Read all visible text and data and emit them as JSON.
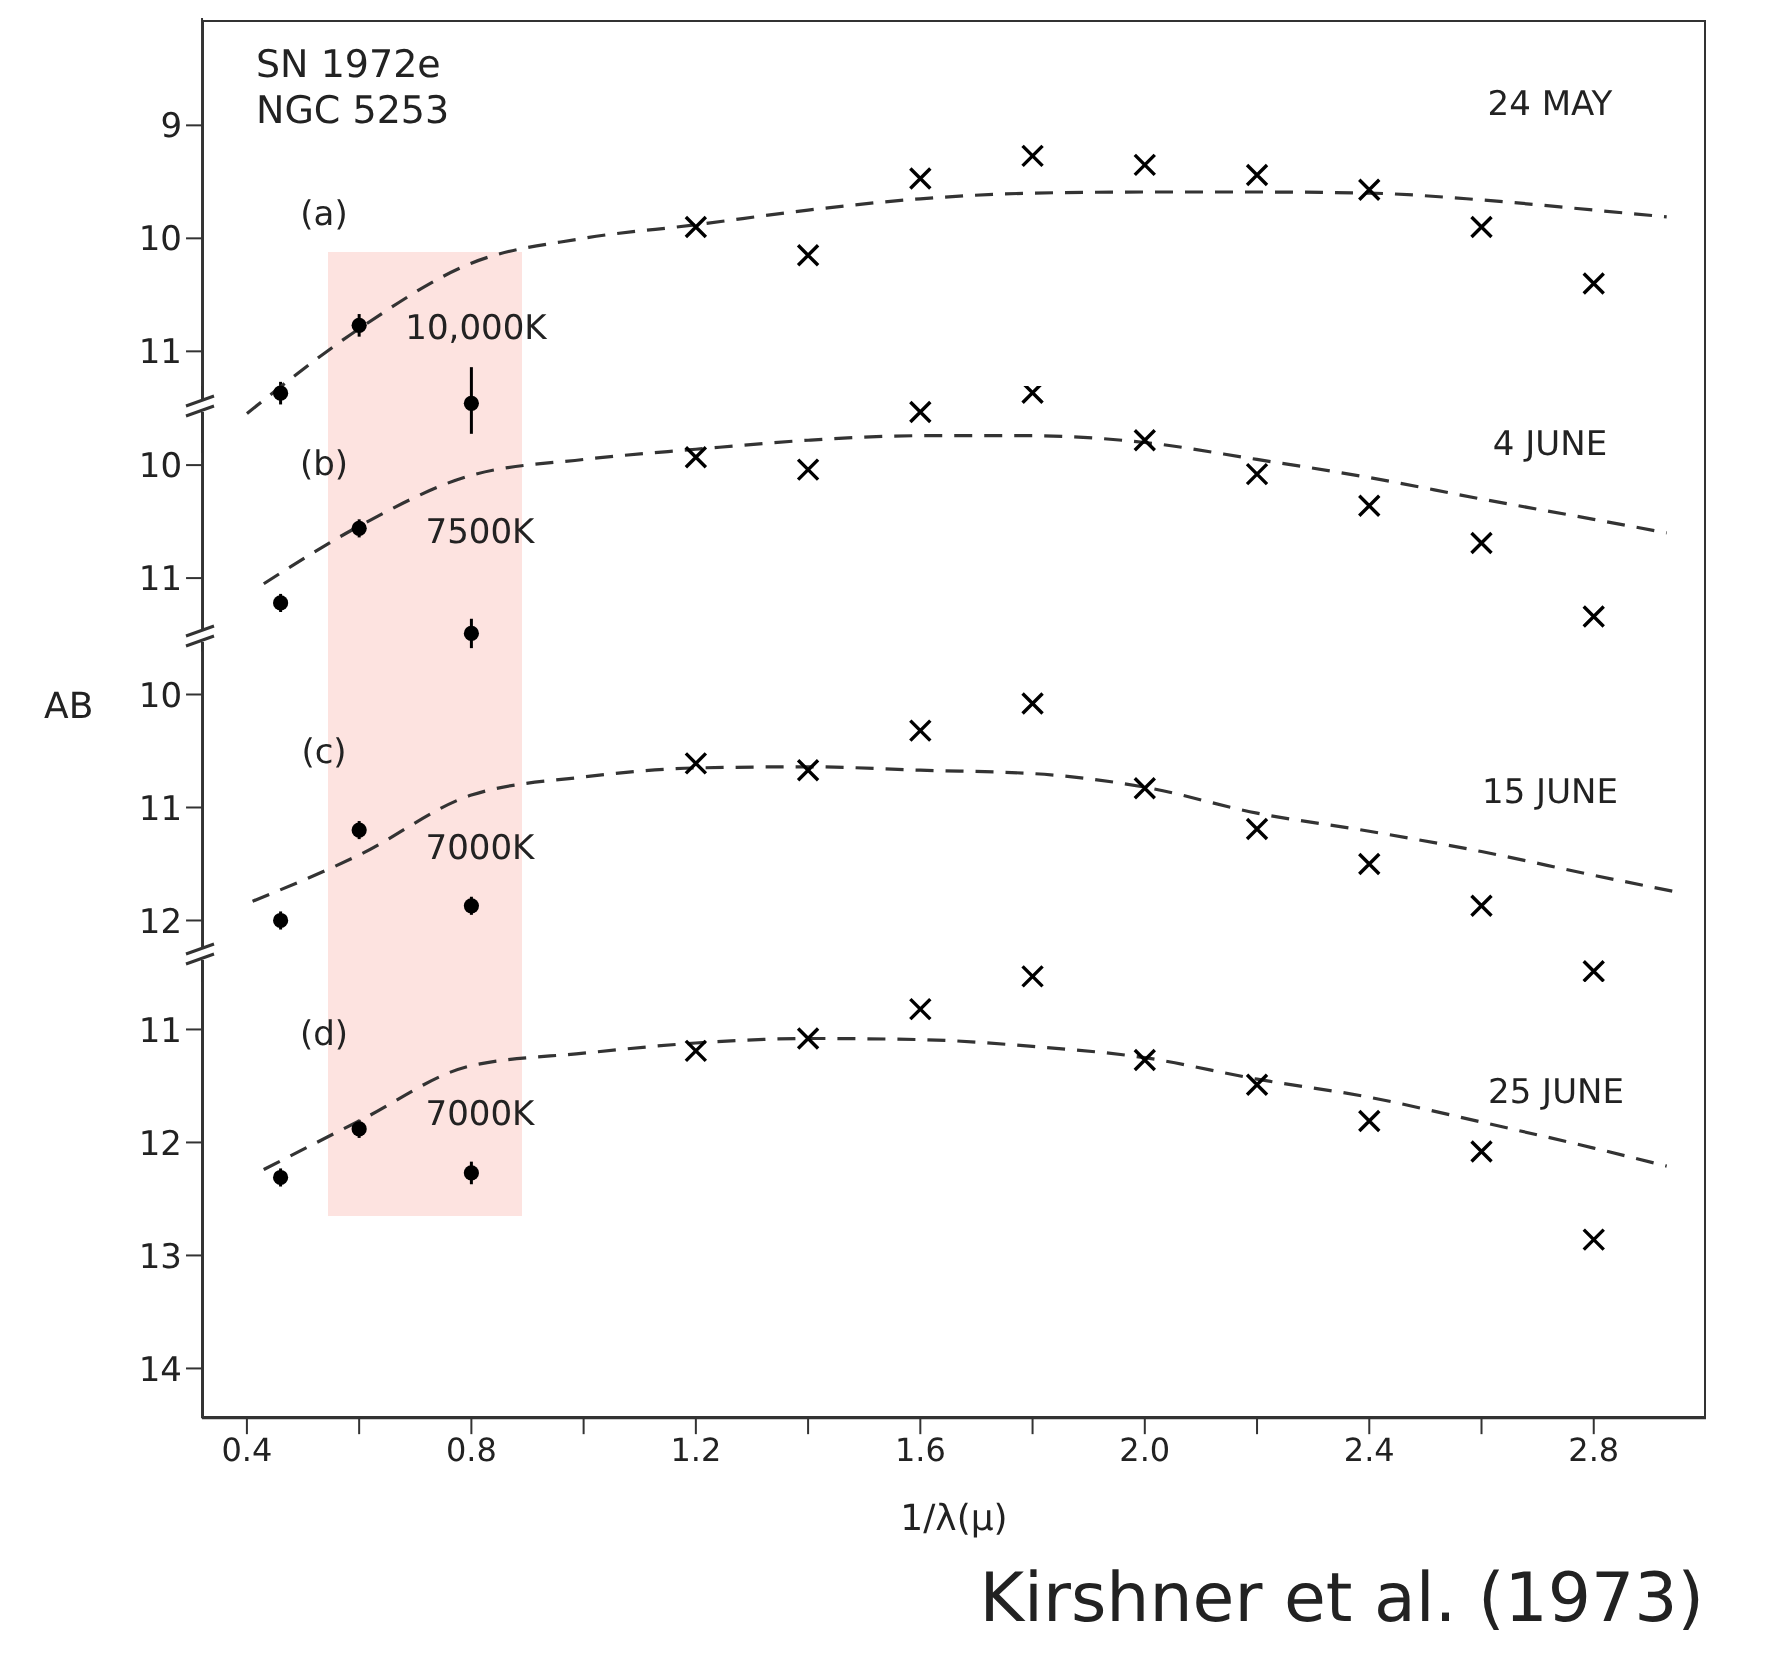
{
  "chart_data": [
    {
      "type": "scatter",
      "xlim": [
        0.32,
        3.0
      ],
      "ylim": [
        11.9,
        8.05
      ],
      "yticks": [
        9,
        10,
        11
      ],
      "tick_labels": "y",
      "annotations": [
        "SN 1972e",
        "NGC 5253",
        "(a)",
        "10,000K",
        "24 MAY"
      ],
      "series": [
        {
          "type": "scatter",
          "marker": "circle",
          "color": "#000000",
          "x": [
            0.46,
            0.6,
            0.8
          ],
          "values": [
            11.37,
            10.77,
            11.46
          ],
          "errors": [
            0.1,
            0.1,
            [
              11.14,
              11.73
            ]
          ]
        },
        {
          "type": "scatter",
          "marker": "cross",
          "color": "#000000",
          "x": [
            1.2,
            1.4,
            1.6,
            1.8,
            2.0,
            2.2,
            2.4,
            2.6,
            2.8
          ],
          "values": [
            9.9,
            10.15,
            9.47,
            9.27,
            9.35,
            9.44,
            9.57,
            9.9,
            10.4
          ]
        },
        {
          "type": "line",
          "marker": "none",
          "line_style": "dashed",
          "color": "#333333",
          "x": [
            0.4,
            0.6,
            0.8,
            1.0,
            1.2,
            1.4,
            1.6,
            1.8,
            2.0,
            2.2,
            2.4,
            2.6,
            2.8,
            2.93
          ],
          "values": [
            11.55,
            10.8,
            10.22,
            10.0,
            9.88,
            9.75,
            9.65,
            9.6,
            9.59,
            9.59,
            9.6,
            9.66,
            9.75,
            9.81
          ]
        }
      ]
    },
    {
      "type": "scatter",
      "xlim": [
        0.32,
        3.0
      ],
      "ylim": [
        11.65,
        9.3
      ],
      "yticks": [
        10,
        11
      ],
      "tick_labels": "y",
      "annotations": [
        "(b)",
        "7500K",
        "4 JUNE"
      ],
      "series": [
        {
          "type": "scatter",
          "marker": "circle",
          "color": "#000000",
          "x": [
            0.46,
            0.6,
            0.8
          ],
          "values": [
            11.22,
            10.56,
            11.49
          ],
          "errors": [
            0.08,
            0.08,
            0.13
          ]
        },
        {
          "type": "scatter",
          "marker": "cross",
          "color": "#000000",
          "x": [
            1.2,
            1.4,
            1.6,
            1.8,
            2.0,
            2.2,
            2.4,
            2.6,
            2.8
          ],
          "values": [
            9.93,
            10.04,
            9.53,
            9.36,
            9.78,
            10.08,
            10.36,
            10.69,
            11.34
          ]
        },
        {
          "type": "line",
          "marker": "none",
          "line_style": "dashed",
          "color": "#333333",
          "x": [
            0.43,
            0.6,
            0.8,
            1.0,
            1.2,
            1.4,
            1.6,
            1.8,
            2.0,
            2.2,
            2.4,
            2.6,
            2.8,
            2.93
          ],
          "values": [
            11.05,
            10.54,
            10.09,
            9.95,
            9.86,
            9.78,
            9.74,
            9.74,
            9.8,
            9.95,
            10.11,
            10.3,
            10.48,
            10.6
          ]
        }
      ]
    },
    {
      "type": "scatter",
      "xlim": [
        0.32,
        3.0
      ],
      "ylim": [
        12.55,
        9.5
      ],
      "yticks": [
        10,
        11,
        12
      ],
      "tick_labels": "y",
      "ylabel": "AB",
      "annotations": [
        "(c)",
        "7000K",
        "15 JUNE"
      ],
      "series": [
        {
          "type": "scatter",
          "marker": "circle",
          "color": "#000000",
          "x": [
            0.46,
            0.6,
            0.8
          ],
          "values": [
            12.0,
            11.2,
            11.87
          ],
          "errors": [
            0.08,
            0.08,
            0.08
          ]
        },
        {
          "type": "scatter",
          "marker": "cross",
          "color": "#000000",
          "x": [
            1.2,
            1.4,
            1.6,
            1.8,
            2.0,
            2.2,
            2.4,
            2.6,
            2.8
          ],
          "values": [
            10.61,
            10.67,
            10.32,
            10.08,
            10.83,
            11.19,
            11.5,
            11.87,
            12.45
          ]
        },
        {
          "type": "line",
          "marker": "none",
          "line_style": "dashed",
          "color": "#333333",
          "x": [
            0.41,
            0.6,
            0.8,
            1.0,
            1.2,
            1.4,
            1.6,
            1.8,
            2.0,
            2.2,
            2.4,
            2.6,
            2.8,
            2.95
          ],
          "values": [
            11.83,
            11.42,
            10.89,
            10.73,
            10.65,
            10.64,
            10.67,
            10.7,
            10.82,
            11.05,
            11.21,
            11.39,
            11.6,
            11.75
          ]
        }
      ]
    },
    {
      "type": "scatter",
      "xlim": [
        0.32,
        3.0
      ],
      "ylim": [
        14.44,
        10.35
      ],
      "yticks": [
        11,
        12,
        13,
        14
      ],
      "xlabel": "1/λ(μ)",
      "xticks": [
        0.4,
        {
          "value": 0.6,
          "label": null
        },
        0.8,
        {
          "value": 1.0,
          "label": null
        },
        1.2,
        {
          "value": 1.4,
          "label": null
        },
        1.6,
        {
          "value": 1.8,
          "label": null
        },
        {
          "value": 2.0,
          "label": "2.0"
        },
        {
          "value": 2.2,
          "label": null
        },
        2.4,
        {
          "value": 2.6,
          "label": null
        },
        2.8
      ],
      "annotations": [
        "(d)",
        "7000K",
        "25 JUNE",
        "Kirshner et al. (1973)"
      ],
      "series": [
        {
          "type": "scatter",
          "marker": "circle",
          "color": "#000000",
          "x": [
            0.46,
            0.6,
            0.8
          ],
          "values": [
            12.31,
            11.88,
            12.27
          ],
          "errors": [
            0.08,
            0.08,
            0.1
          ]
        },
        {
          "type": "scatter",
          "marker": "cross",
          "color": "#000000",
          "x": [
            1.2,
            1.4,
            1.6,
            1.8,
            2.0,
            2.2,
            2.4,
            2.6,
            2.8
          ],
          "values": [
            11.19,
            11.08,
            10.82,
            10.53,
            11.27,
            11.49,
            11.81,
            12.08,
            12.86
          ]
        },
        {
          "type": "line",
          "marker": "none",
          "line_style": "dashed",
          "color": "#333333",
          "x": [
            0.43,
            0.6,
            0.8,
            1.0,
            1.2,
            1.4,
            1.6,
            1.8,
            2.0,
            2.2,
            2.4,
            2.6,
            2.8,
            2.93
          ],
          "values": [
            12.24,
            11.81,
            11.32,
            11.21,
            11.12,
            11.08,
            11.09,
            11.15,
            11.25,
            11.44,
            11.6,
            11.82,
            12.05,
            12.21
          ]
        }
      ]
    }
  ]
}
